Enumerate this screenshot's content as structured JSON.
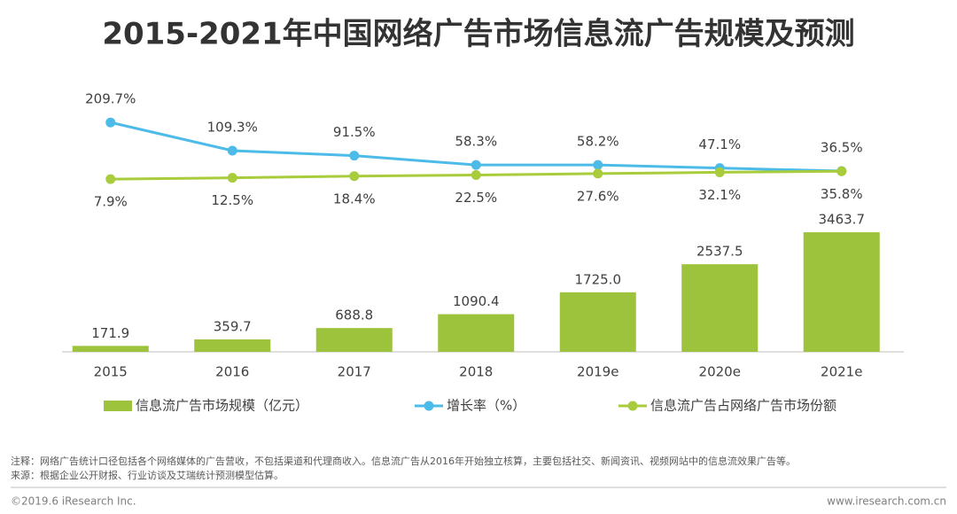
{
  "title": "2015-2021年中国网络广告市场信息流广告规模及预测",
  "chart_data": [
    {
      "type": "bar",
      "name": "信息流广告市场规模（亿元）",
      "color": "#9dc23b",
      "categories": [
        "2015",
        "2016",
        "2017",
        "2018",
        "2019e",
        "2020e",
        "2021e"
      ],
      "values": [
        171.9,
        359.7,
        688.8,
        1090.4,
        1725.0,
        2537.5,
        3463.7
      ],
      "value_labels": [
        "171.9",
        "359.7",
        "688.8",
        "1090.4",
        "1725.0",
        "2537.5",
        "3463.7"
      ],
      "ylim": [
        0,
        3800
      ]
    },
    {
      "type": "line",
      "ylim": [
        0,
        240
      ],
      "series": [
        {
          "name": "增长率（%）",
          "color": "#4dbbe8",
          "values": [
            209.7,
            109.3,
            91.5,
            58.3,
            58.2,
            47.1,
            36.5
          ],
          "value_labels": [
            "209.7%",
            "109.3%",
            "91.5%",
            "58.3%",
            "58.2%",
            "47.1%",
            "36.5%"
          ]
        },
        {
          "name": "信息流广告占网络广告市场份额",
          "color": "#a8cc3c",
          "values": [
            7.9,
            12.5,
            18.4,
            22.5,
            27.6,
            32.1,
            35.8
          ],
          "value_labels": [
            "7.9%",
            "12.5%",
            "18.4%",
            "22.5%",
            "27.6%",
            "32.1%",
            "35.8%"
          ]
        }
      ]
    }
  ],
  "notes": [
    "注释：网络广告统计口径包括各个网络媒体的广告营收，不包括渠道和代理商收入。信息流广告从2016年开始独立核算，主要包括社交、新闻资讯、视频网站中的信息流效果广告等。",
    "来源：根据企业公开财报、行业访谈及艾瑞统计预测模型估算。"
  ],
  "footer": {
    "left": "©2019.6 iResearch Inc.",
    "right": "www.iresearch.com.cn"
  }
}
